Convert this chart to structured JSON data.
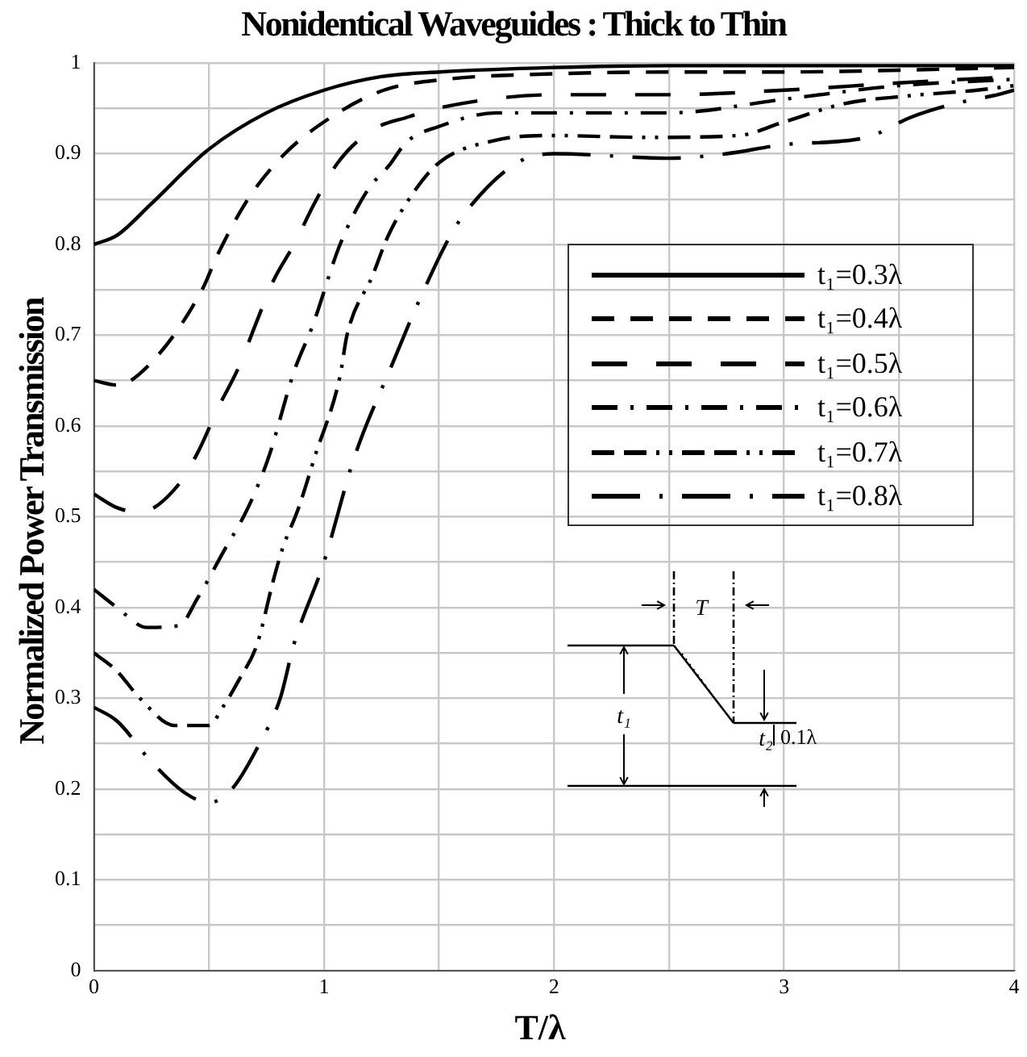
{
  "chart_data": {
    "type": "line",
    "title": "Nonidentical Waveguides : Thick to Thin",
    "xlabel": "T/λ",
    "ylabel": "Normalized Power Transmission",
    "xlim": [
      0,
      4
    ],
    "xticks": [
      0,
      {
        "value": 0.5,
        "label": null
      },
      1,
      {
        "value": 1.5,
        "label": null
      },
      2,
      {
        "value": 2.5,
        "label": null
      },
      3,
      {
        "value": 3.5,
        "label": null
      },
      4
    ],
    "ylim": [
      0,
      1
    ],
    "yticks": [
      0,
      {
        "value": 0.05,
        "label": null
      },
      0.1,
      {
        "value": 0.15,
        "label": null
      },
      0.2,
      {
        "value": 0.25,
        "label": null
      },
      0.3,
      {
        "value": 0.35,
        "label": null
      },
      0.4,
      {
        "value": 0.45,
        "label": null
      },
      0.5,
      {
        "value": 0.55,
        "label": null
      },
      0.6,
      {
        "value": 0.65,
        "label": null
      },
      0.7,
      {
        "value": 0.75,
        "label": null
      },
      0.8,
      {
        "value": 0.85,
        "label": null
      },
      0.9,
      {
        "value": 0.95,
        "label": null
      },
      1
    ],
    "grid": true,
    "legend": "right",
    "marker": "none",
    "annotations": [
      "T",
      "t₁",
      "t₂",
      "0.1λ"
    ],
    "series": [
      {
        "name": "t₁=0.3λ",
        "color": "#000000",
        "line_style": "solid",
        "x": [
          0,
          0.1,
          0.25,
          0.5,
          0.75,
          1,
          1.25,
          1.5,
          2,
          2.5,
          3,
          3.5,
          4
        ],
        "values": [
          0.8,
          0.81,
          0.845,
          0.905,
          0.945,
          0.97,
          0.985,
          0.99,
          0.995,
          0.997,
          0.997,
          0.997,
          0.997
        ]
      },
      {
        "name": "t₁=0.4λ",
        "color": "#000000",
        "line_style": "dashed",
        "x": [
          0,
          0.1,
          0.25,
          0.47,
          0.54,
          0.67,
          0.83,
          1.03,
          1.26,
          1.53,
          2,
          2.5,
          3,
          3.5,
          4
        ],
        "values": [
          0.65,
          0.645,
          0.67,
          0.75,
          0.79,
          0.85,
          0.9,
          0.94,
          0.97,
          0.982,
          0.988,
          0.99,
          0.99,
          0.992,
          0.995
        ]
      },
      {
        "name": "t₁=0.5λ",
        "color": "#000000",
        "line_style": "dashed",
        "x": [
          0,
          0.1,
          0.2,
          0.35,
          0.45,
          0.54,
          0.63,
          0.7,
          0.78,
          0.87,
          0.96,
          1.06,
          1.21,
          1.36,
          1.55,
          2,
          2.5,
          3,
          3.5,
          4
        ],
        "values": [
          0.525,
          0.51,
          0.505,
          0.53,
          0.57,
          0.62,
          0.665,
          0.71,
          0.76,
          0.8,
          0.846,
          0.89,
          0.926,
          0.94,
          0.953,
          0.965,
          0.965,
          0.97,
          0.978,
          0.985
        ]
      },
      {
        "name": "t₁=0.6λ",
        "color": "#000000",
        "line_style": "dashed",
        "x": [
          0,
          0.1,
          0.23,
          0.37,
          0.45,
          0.56,
          0.67,
          0.76,
          0.87,
          0.95,
          1.07,
          1.19,
          1.28,
          1.36,
          1.5,
          1.75,
          2,
          2.5,
          3,
          3.5,
          4
        ],
        "values": [
          0.42,
          0.4,
          0.378,
          0.38,
          0.41,
          0.46,
          0.51,
          0.566,
          0.66,
          0.71,
          0.8,
          0.86,
          0.886,
          0.913,
          0.93,
          0.945,
          0.945,
          0.945,
          0.96,
          0.975,
          0.982
        ]
      },
      {
        "name": "t₁=0.7λ",
        "color": "#000000",
        "line_style": "dashed",
        "x": [
          0,
          0.1,
          0.2,
          0.35,
          0.5,
          0.56,
          0.63,
          0.71,
          0.78,
          0.82,
          0.89,
          0.96,
          1.07,
          1.1,
          1.21,
          1.28,
          1.37,
          1.5,
          1.75,
          2,
          2.4,
          2.8,
          3,
          3.26,
          3.55,
          3.84,
          4
        ],
        "values": [
          0.35,
          0.33,
          0.3,
          0.27,
          0.27,
          0.29,
          0.32,
          0.36,
          0.43,
          0.465,
          0.51,
          0.566,
          0.655,
          0.7,
          0.765,
          0.81,
          0.85,
          0.89,
          0.915,
          0.92,
          0.918,
          0.92,
          0.935,
          0.955,
          0.964,
          0.97,
          0.975
        ]
      },
      {
        "name": "t₁=0.8λ",
        "color": "#000000",
        "line_style": "dashed",
        "x": [
          0,
          0.1,
          0.25,
          0.4,
          0.5,
          0.6,
          0.72,
          0.81,
          0.87,
          1,
          1.13,
          1.3,
          1.41,
          1.55,
          1.62,
          1.84,
          2,
          2.5,
          2.75,
          3,
          3.36,
          3.55,
          3.74,
          3.91,
          4
        ],
        "values": [
          0.29,
          0.275,
          0.23,
          0.195,
          0.185,
          0.2,
          0.25,
          0.3,
          0.36,
          0.45,
          0.564,
          0.67,
          0.736,
          0.81,
          0.837,
          0.89,
          0.9,
          0.895,
          0.9,
          0.91,
          0.918,
          0.94,
          0.955,
          0.964,
          0.97
        ]
      }
    ]
  }
}
